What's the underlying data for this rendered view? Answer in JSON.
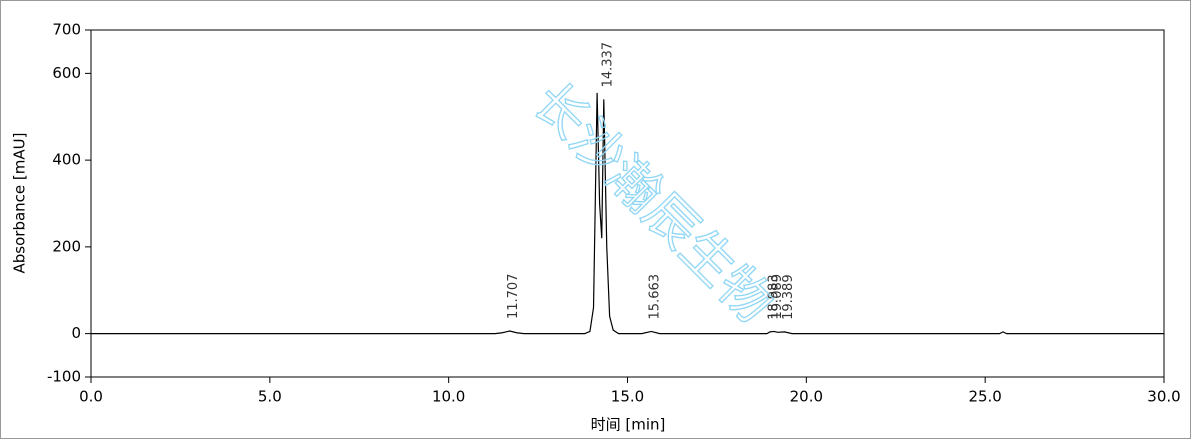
{
  "chart_data": {
    "type": "line",
    "x_label": "时间 [min]",
    "y_label": "Absorbance [mAU]",
    "x": [
      0,
      11.3,
      11.5,
      11.707,
      11.9,
      12.1,
      13.8,
      13.95,
      14.05,
      14.15,
      14.22,
      14.28,
      14.337,
      14.42,
      14.5,
      14.6,
      14.75,
      15.4,
      15.663,
      15.9,
      18.9,
      18.983,
      19.089,
      19.2,
      19.389,
      19.6,
      25.4,
      25.5,
      25.6,
      30
    ],
    "values": [
      0,
      0,
      2,
      6,
      2,
      0,
      0,
      5,
      60,
      555,
      300,
      220,
      540,
      200,
      40,
      8,
      0,
      0,
      5,
      0,
      0,
      4,
      5,
      3,
      4,
      0,
      0,
      4,
      0,
      0
    ],
    "color": "#000000",
    "peak_labels": [
      11.707,
      14.337,
      15.663,
      18.983,
      19.089,
      19.389
    ],
    "watermark": "长沙瀚辰生物",
    "xlim": [
      0,
      30
    ],
    "xticks": [
      {
        "value": 0,
        "label": "0.0"
      },
      {
        "value": 5,
        "label": "5.0"
      },
      {
        "value": 10,
        "label": "10.0"
      },
      {
        "value": 15,
        "label": "15.0"
      },
      {
        "value": 20,
        "label": "20.0"
      },
      {
        "value": 25,
        "label": "25.0"
      },
      {
        "value": 30,
        "label": "30.0"
      }
    ],
    "ylim": [
      -100,
      700
    ],
    "yticks": [
      -100,
      0,
      200,
      400,
      600,
      700
    ]
  }
}
